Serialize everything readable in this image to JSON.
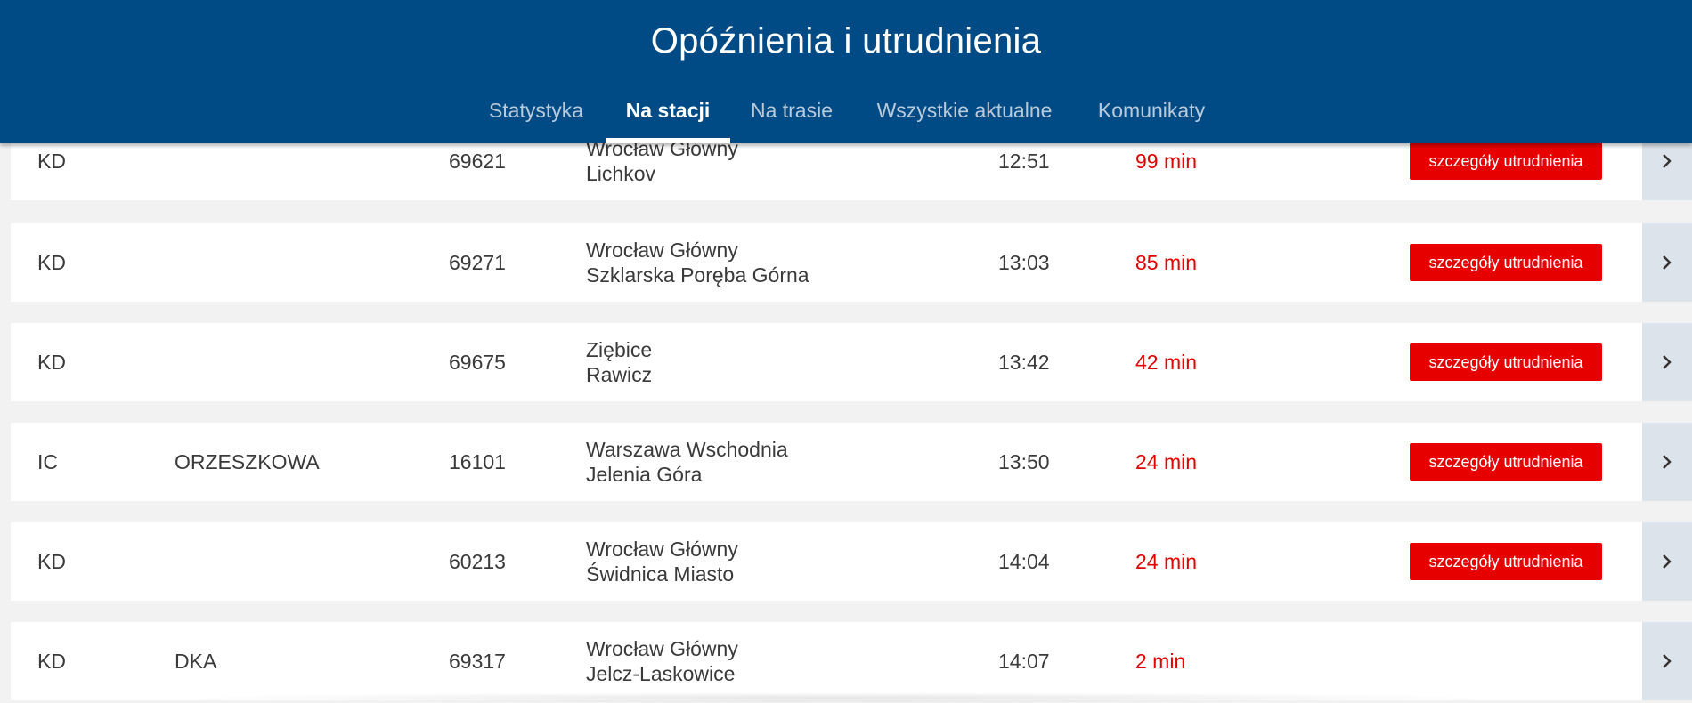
{
  "header": {
    "title": "Opóźnienia i utrudnienia",
    "tabs": [
      {
        "label": "Statystyka",
        "active": false
      },
      {
        "label": "Na stacji",
        "active": true
      },
      {
        "label": "Na trasie",
        "active": false
      },
      {
        "label": "Wszystkie aktualne",
        "active": false
      },
      {
        "label": "Komunikaty",
        "active": false
      }
    ]
  },
  "details_label": "szczegóły utrudnienia",
  "colors": {
    "header_bg": "#004b85",
    "delay_text": "#e00000",
    "details_button": "#e60000",
    "arrow_bg": "#dde3ea",
    "page_bg": "#f2f2f2"
  },
  "icons": {
    "row_expand": "chevron-right-icon"
  },
  "rows": [
    {
      "carrier": "KD",
      "name": "",
      "number": "69621",
      "from": "Wrocław Główny",
      "to": "Lichkov",
      "time": "12:51",
      "delay": "99 min",
      "has_details": true
    },
    {
      "carrier": "KD",
      "name": "",
      "number": "69271",
      "from": "Wrocław Główny",
      "to": "Szklarska Poręba Górna",
      "time": "13:03",
      "delay": "85 min",
      "has_details": true
    },
    {
      "carrier": "KD",
      "name": "",
      "number": "69675",
      "from": "Ziębice",
      "to": "Rawicz",
      "time": "13:42",
      "delay": "42 min",
      "has_details": true
    },
    {
      "carrier": "IC",
      "name": "ORZESZKOWA",
      "number": "16101",
      "from": "Warszawa Wschodnia",
      "to": "Jelenia Góra",
      "time": "13:50",
      "delay": "24 min",
      "has_details": true
    },
    {
      "carrier": "KD",
      "name": "",
      "number": "60213",
      "from": "Wrocław Główny",
      "to": "Świdnica Miasto",
      "time": "14:04",
      "delay": "24 min",
      "has_details": true
    },
    {
      "carrier": "KD",
      "name": "DKA",
      "number": "69317",
      "from": "Wrocław Główny",
      "to": "Jelcz-Laskowice",
      "time": "14:07",
      "delay": "2 min",
      "has_details": false
    }
  ]
}
